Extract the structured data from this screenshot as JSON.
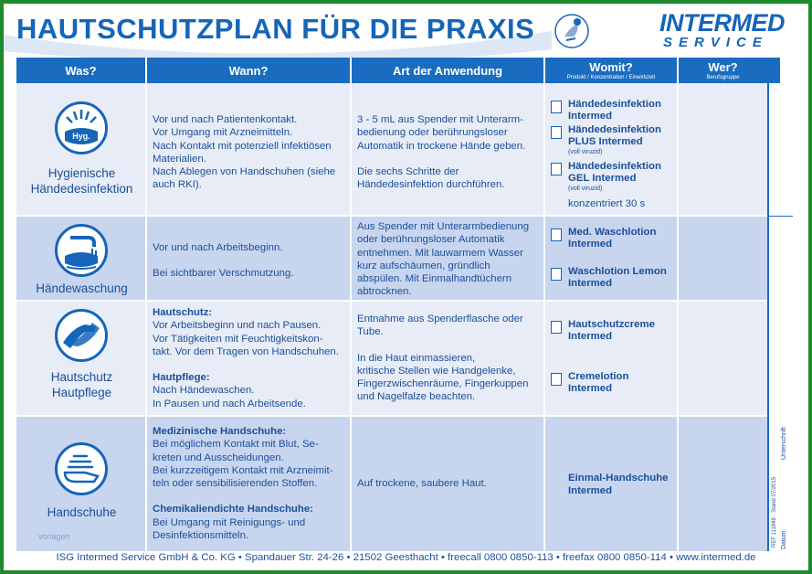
{
  "header": {
    "title": "HAUTSCHUTZPLAN FÜR DIE PRAXIS",
    "logo_main": "INTERMED",
    "logo_sub": "SERVICE"
  },
  "columns": {
    "was": "Was?",
    "wann": "Wann?",
    "art": "Art der Anwendung",
    "womit": "Womit?",
    "womit_sub": "Produkt / Konzentration / Einwirkzeit",
    "wer": "Wer?",
    "wer_sub": "Berufsgruppe"
  },
  "rows": [
    {
      "icon": "hand-disinfection-icon",
      "icon_text": "Hyg.",
      "was": [
        "Hygienische",
        "Händedesinfektion"
      ],
      "wann": [
        "Vor und nach Patientenkontakt.",
        "Vor Umgang mit Arzneimitteln.",
        "Nach Kontakt mit potenziell infektiösen",
        "Materialien.",
        "Nach Ablegen von Handschuhen (siehe",
        "auch RKI)."
      ],
      "art": [
        "3 - 5 mL aus Spender mit Unterarm-",
        "bedienung oder berührungsloser",
        "Automatik in trockene Hände geben.",
        "",
        "Die sechs Schritte der",
        "Händedesinfektion durchführen."
      ],
      "products": [
        {
          "name": [
            "Händedesinfektion",
            "Intermed"
          ],
          "note": ""
        },
        {
          "name": [
            "Händedesinfektion",
            "PLUS Intermed"
          ],
          "note": "(voll viruzid)"
        },
        {
          "name": [
            "Händedesinfektion",
            "GEL Intermed"
          ],
          "note": "(voll viruzid)"
        }
      ],
      "extra": "konzentriert 30 s"
    },
    {
      "icon": "hand-washing-icon",
      "was": [
        "Händewaschung"
      ],
      "wann": [
        "Vor und nach Arbeitsbeginn.",
        "",
        "Bei sichtbarer Verschmutzung."
      ],
      "art": [
        "Aus Spender mit Unterarmbedienung",
        "oder berührungsloser Automatik",
        "entnehmen. Mit lauwarmem Wasser",
        "kurz aufschäumen, gründlich",
        "abspülen. Mit Einmalhandtüchern",
        "abtrocknen."
      ],
      "products": [
        {
          "name": [
            "Med. Waschlotion",
            "Intermed"
          ],
          "note": ""
        },
        {
          "name": [
            "Waschlotion Lemon",
            "Intermed"
          ],
          "note": ""
        }
      ]
    },
    {
      "icon": "skin-protection-icon",
      "was": [
        "Hautschutz",
        "Hautpflege"
      ],
      "wann_h1": "Hautschutz:",
      "wann_p1": [
        "Vor Arbeitsbeginn und nach Pausen.",
        "Vor Tätigkeiten mit Feuchtigkeitskon-",
        "takt. Vor dem Tragen von Handschuhen."
      ],
      "wann_h2": "Hautpflege:",
      "wann_p2": [
        "Nach Händewaschen.",
        "In Pausen und nach Arbeitsende."
      ],
      "art": [
        "Entnahme aus Spenderflasche oder",
        "Tube.",
        "",
        "In die Haut einmassieren,",
        "kritische Stellen wie Handgelenke,",
        "Fingerzwischenräume, Fingerkuppen",
        "und Nagelfalze beachten."
      ],
      "products": [
        {
          "name": [
            "Hautschutzcreme",
            "Intermed"
          ],
          "note": ""
        },
        {
          "name": [
            "Cremelotion",
            "Intermed"
          ],
          "note": ""
        }
      ]
    },
    {
      "icon": "glove-icon",
      "was": [
        "Handschuhe"
      ],
      "wann_h1": "Medizinische Handschuhe:",
      "wann_p1": [
        "Bei möglichem Kontakt mit Blut, Se-",
        "kreten und Ausscheidungen.",
        "Bei kurzzeitigem Kontakt mit Arzneimit-",
        "teln oder sensibilisierenden Stoffen."
      ],
      "wann_h2": "Chemikaliendichte Handschuhe:",
      "wann_p2": [
        "Bei Umgang mit Reinigungs- und",
        "Desinfektionsmitteln."
      ],
      "art": [
        "Auf trockene, saubere Haut."
      ],
      "products_plain": [
        "Einmal-Handschuhe",
        "Intermed"
      ]
    }
  ],
  "side": {
    "unterschrift": "Unterschrift",
    "datum": "Datum",
    "ref": "REF 111949 · Stand 07/2015"
  },
  "watermark": "vorlagen",
  "footer": "ISG Intermed Service GmbH & Co. KG • Spandauer Str. 24-26 • 21502 Geesthacht • freecall 0800 0850-113 • freefax 0800 0850-114 • www.intermed.de",
  "colors": {
    "accent": "#1565b8",
    "row_light": "#e7ecf6",
    "row_dark": "#c8d5ee",
    "border": "#1f8a2e"
  }
}
